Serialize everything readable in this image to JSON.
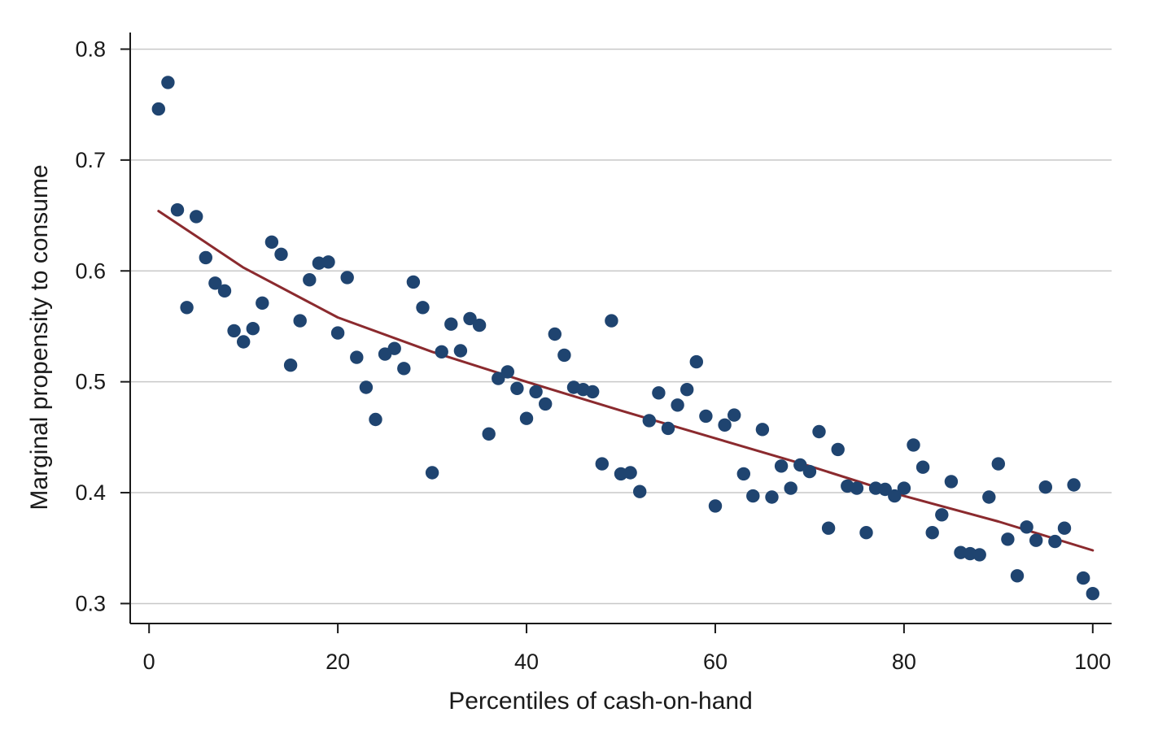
{
  "chart_data": {
    "type": "scatter",
    "xlabel": "Percentiles of cash-on-hand",
    "ylabel": "Marginal propensity to consume",
    "xlim": [
      -2,
      102
    ],
    "ylim": [
      0.282,
      0.815
    ],
    "xticks": [
      0,
      20,
      40,
      60,
      80,
      100
    ],
    "yticks": [
      0.3,
      0.4,
      0.5,
      0.6,
      0.7,
      0.8
    ],
    "xtick_labels": [
      "0",
      "20",
      "40",
      "60",
      "80",
      "100"
    ],
    "ytick_labels": [
      "0.3",
      "0.4",
      "0.5",
      "0.6",
      "0.7",
      "0.8"
    ],
    "grid": "horizontal",
    "colors": {
      "points": "#1f4470",
      "fit": "#8b2a2e",
      "grid": "#c8c8c8",
      "axis": "#1a1a1a"
    },
    "series": [
      {
        "type": "scatter",
        "x": [
          1,
          2,
          3,
          4,
          5,
          6,
          7,
          8,
          9,
          10,
          11,
          12,
          13,
          14,
          15,
          16,
          17,
          18,
          19,
          20,
          21,
          22,
          23,
          24,
          25,
          26,
          27,
          28,
          29,
          30,
          31,
          32,
          33,
          34,
          35,
          36,
          37,
          38,
          39,
          40,
          41,
          42,
          43,
          44,
          45,
          46,
          47,
          48,
          49,
          50,
          51,
          52,
          53,
          54,
          55,
          56,
          57,
          58,
          59,
          60,
          61,
          62,
          63,
          64,
          65,
          66,
          67,
          68,
          69,
          70,
          71,
          72,
          73,
          74,
          75,
          76,
          77,
          78,
          79,
          80,
          81,
          82,
          83,
          84,
          85,
          86,
          87,
          88,
          89,
          90,
          91,
          92,
          93,
          94,
          95,
          96,
          97,
          98,
          99,
          100
        ],
        "y": [
          0.746,
          0.77,
          0.655,
          0.567,
          0.649,
          0.612,
          0.589,
          0.582,
          0.546,
          0.536,
          0.548,
          0.571,
          0.626,
          0.615,
          0.515,
          0.555,
          0.592,
          0.607,
          0.608,
          0.544,
          0.594,
          0.522,
          0.495,
          0.466,
          0.525,
          0.53,
          0.512,
          0.59,
          0.567,
          0.418,
          0.527,
          0.552,
          0.528,
          0.557,
          0.551,
          0.453,
          0.503,
          0.509,
          0.494,
          0.467,
          0.491,
          0.48,
          0.543,
          0.524,
          0.495,
          0.493,
          0.491,
          0.426,
          0.555,
          0.417,
          0.418,
          0.401,
          0.465,
          0.49,
          0.458,
          0.479,
          0.493,
          0.518,
          0.469,
          0.388,
          0.461,
          0.47,
          0.417,
          0.397,
          0.457,
          0.396,
          0.424,
          0.404,
          0.425,
          0.419,
          0.455,
          0.368,
          0.439,
          0.406,
          0.404,
          0.364,
          0.404,
          0.403,
          0.397,
          0.404,
          0.443,
          0.423,
          0.364,
          0.38,
          0.41,
          0.346,
          0.345,
          0.344,
          0.396,
          0.426,
          0.358,
          0.325,
          0.369,
          0.357,
          0.405,
          0.356,
          0.368,
          0.407,
          0.323,
          0.309
        ]
      },
      {
        "type": "line",
        "x": [
          1,
          10,
          20,
          30,
          40,
          50,
          60,
          70,
          80,
          90,
          100
        ],
        "y": [
          0.654,
          0.603,
          0.558,
          0.527,
          0.5,
          0.474,
          0.449,
          0.424,
          0.397,
          0.374,
          0.348
        ]
      }
    ]
  }
}
